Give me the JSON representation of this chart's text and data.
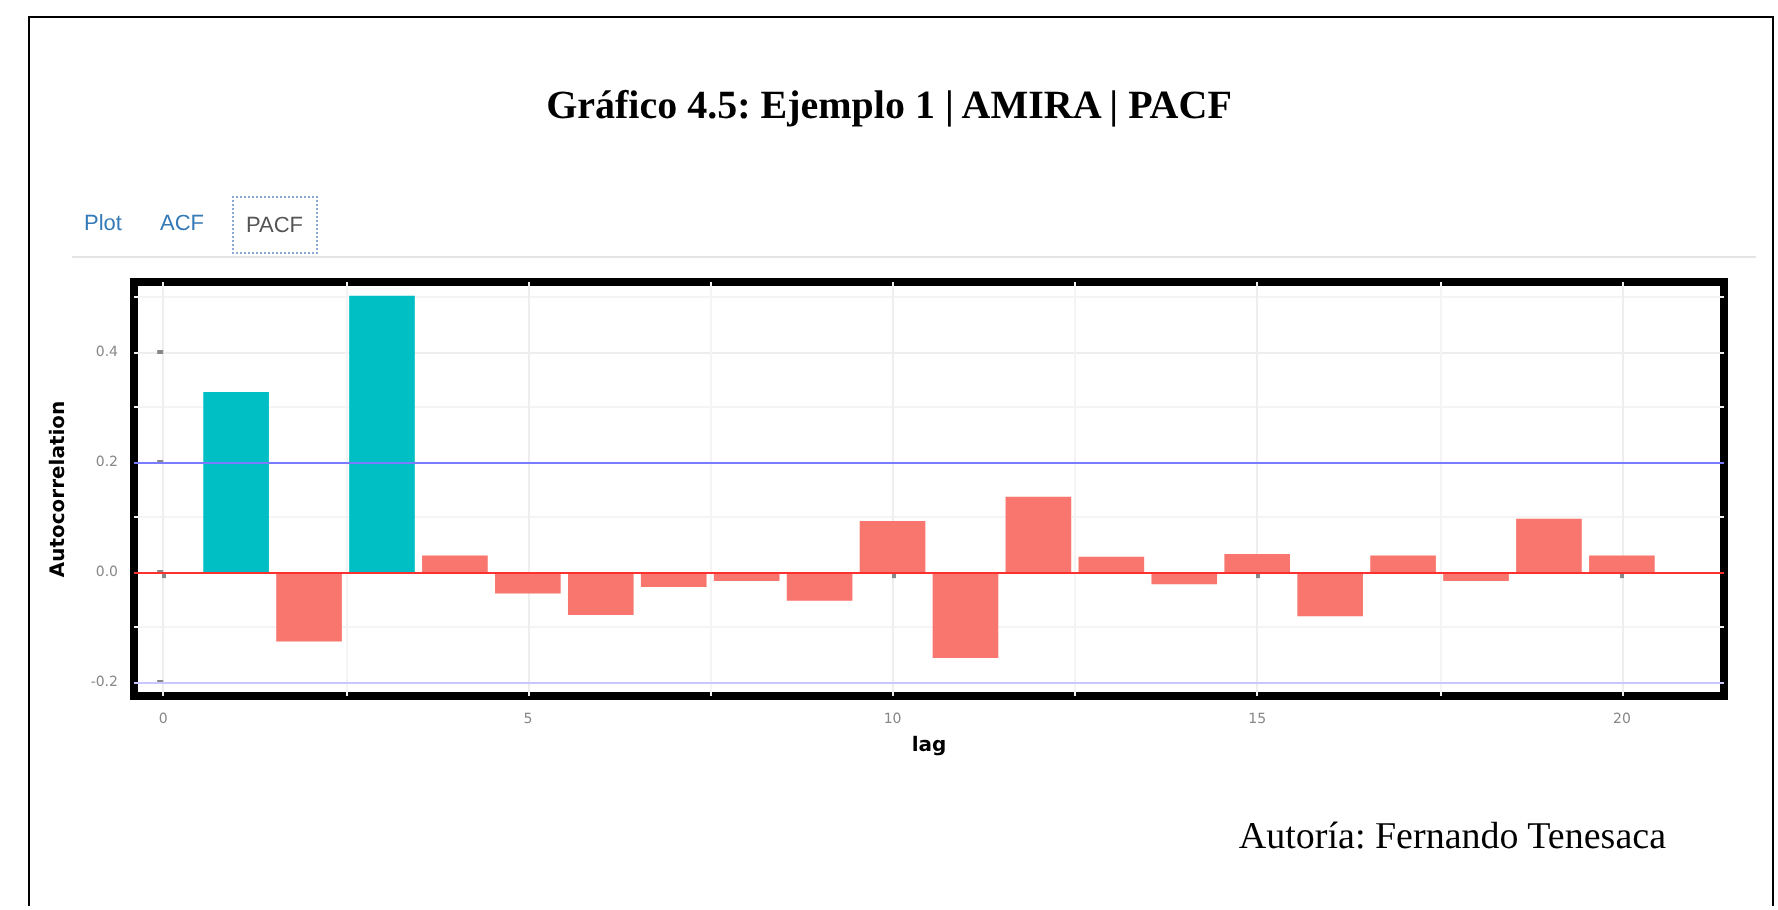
{
  "chart_data": {
    "type": "bar",
    "title": "Gráfico 4.5: Ejemplo 1 | AMIRA | PACF",
    "xlabel": "lag",
    "ylabel": "Autocorrelation",
    "x": [
      1,
      2,
      3,
      4,
      5,
      6,
      7,
      8,
      9,
      10,
      11,
      12,
      13,
      14,
      15,
      16,
      17,
      18,
      19,
      20
    ],
    "values": [
      0.327,
      -0.126,
      0.502,
      0.03,
      -0.039,
      -0.078,
      -0.027,
      -0.016,
      -0.052,
      0.093,
      -0.156,
      0.137,
      0.028,
      -0.022,
      0.033,
      -0.08,
      0.03,
      -0.016,
      0.097,
      0.03
    ],
    "colors": [
      "#00bfc4",
      "#f8766d",
      "#00bfc4",
      "#f8766d",
      "#f8766d",
      "#f8766d",
      "#f8766d",
      "#f8766d",
      "#f8766d",
      "#f8766d",
      "#f8766d",
      "#f8766d",
      "#f8766d",
      "#f8766d",
      "#f8766d",
      "#f8766d",
      "#f8766d",
      "#f8766d",
      "#f8766d",
      "#f8766d"
    ],
    "xlim": [
      -0.4,
      21.4
    ],
    "xticks": [
      0,
      5,
      10,
      15,
      20
    ],
    "ylim": [
      -0.225,
      0.527
    ],
    "yticks": [
      {
        "value": -0.2,
        "label": "-0.2"
      },
      {
        "value": 0,
        "label": "0.0"
      },
      {
        "value": 0.2,
        "label": "0.2"
      },
      {
        "value": 0.4,
        "label": "0.4"
      }
    ],
    "grid": true,
    "ref_lines": [
      {
        "axis": "y",
        "value": 0.195,
        "color": "#7b7bff"
      },
      {
        "axis": "y",
        "value": -0.195,
        "color": "#c8c8ff"
      },
      {
        "axis": "y",
        "value": 0,
        "color": "#ff3030"
      }
    ],
    "annotations": [
      "Plot",
      "ACF",
      "PACF",
      "Autoría: Fernando Tenesaca"
    ]
  }
}
